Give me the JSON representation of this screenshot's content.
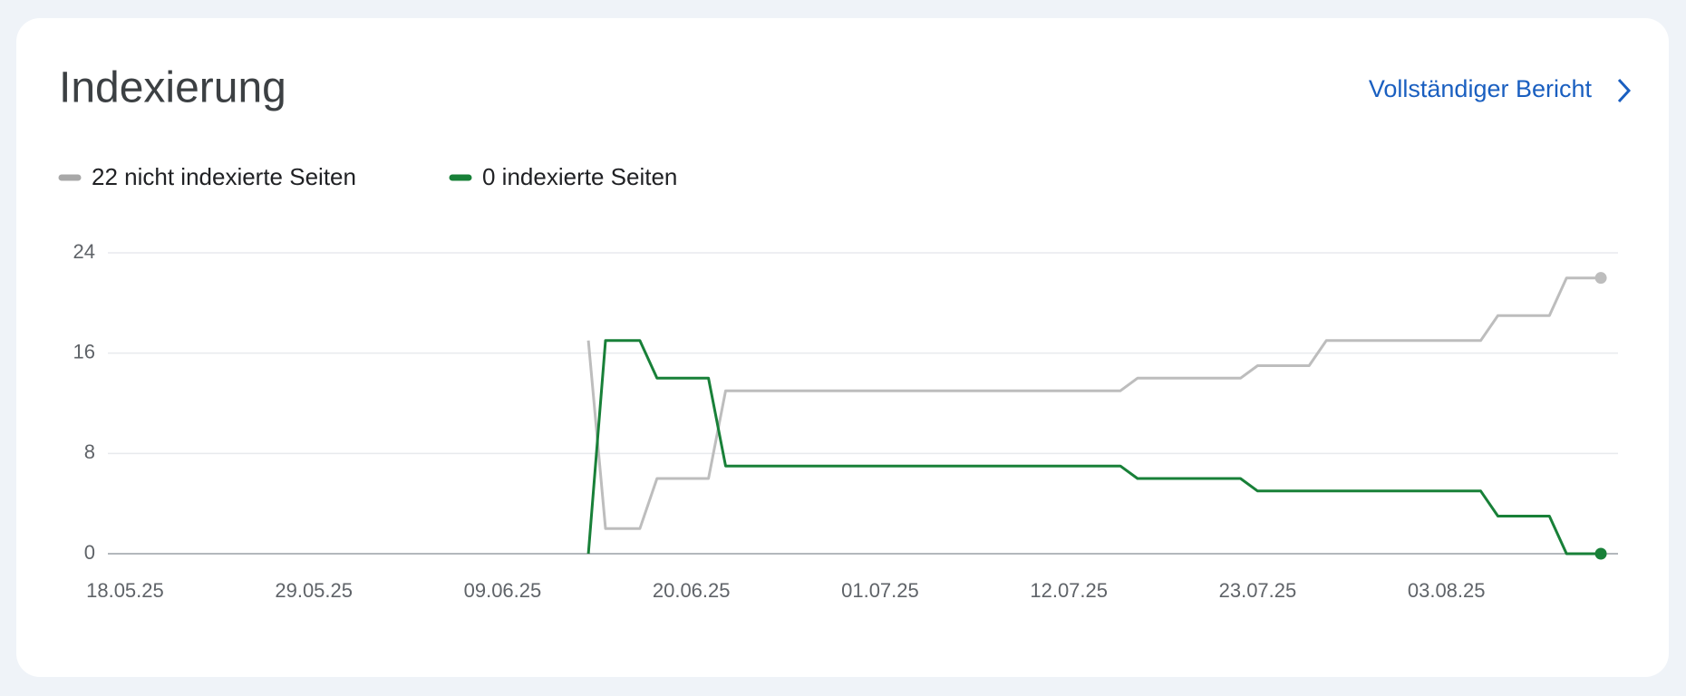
{
  "chart_data": {
    "type": "line",
    "title": "Indexierung",
    "link": "Vollständiger Bericht",
    "x": [
      "14.06.25",
      "15.06.25",
      "17.06.25",
      "18.06.25",
      "21.06.25",
      "22.06.25",
      "15.07.25",
      "16.07.25",
      "22.07.25",
      "23.07.25",
      "26.07.25",
      "27.07.25",
      "05.08.25",
      "06.08.25",
      "09.08.25",
      "10.08.25",
      "12.08.25"
    ],
    "series": [
      {
        "name": "22 nicht indexierte Seiten",
        "color": "#bdbdbd",
        "values": [
          17,
          2,
          2,
          6,
          6,
          13,
          13,
          14,
          14,
          15,
          15,
          17,
          17,
          19,
          19,
          22,
          22
        ]
      },
      {
        "name": "0 indexierte Seiten",
        "color": "#188038",
        "values": [
          0,
          17,
          17,
          14,
          14,
          7,
          7,
          6,
          6,
          5,
          5,
          5,
          5,
          3,
          3,
          0,
          0
        ]
      }
    ],
    "xlim": [
      "17.05.25",
      "13.08.25"
    ],
    "xticks": [
      "18.05.25",
      "29.05.25",
      "09.06.25",
      "20.06.25",
      "01.07.25",
      "12.07.25",
      "23.07.25",
      "03.08.25"
    ],
    "ylim": [
      0,
      24
    ],
    "yticks": [
      0,
      8,
      16,
      24
    ],
    "grid": true
  }
}
